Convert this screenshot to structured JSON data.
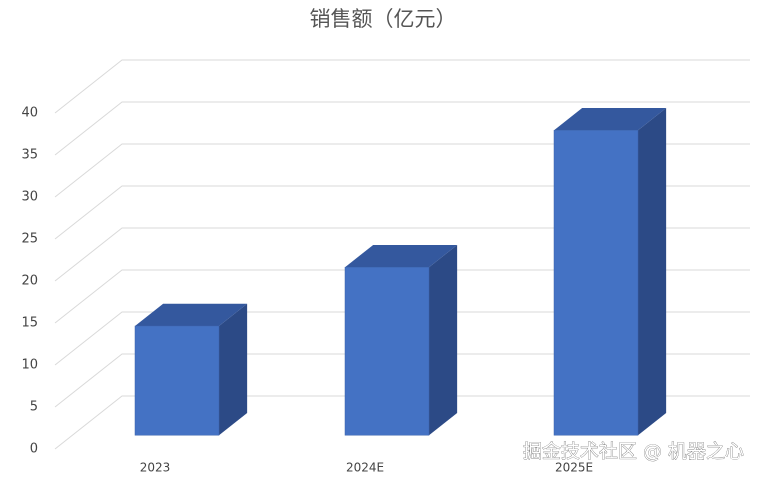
{
  "chart_data": {
    "type": "bar3d",
    "title": "销售额（亿元）",
    "categories": [
      "2023",
      "2024E",
      "2025E"
    ],
    "values": [
      13,
      20,
      36.3
    ],
    "color": "#4472c4",
    "ylim": [
      0,
      40
    ],
    "yticks": [
      0,
      5,
      10,
      15,
      20,
      25,
      30,
      35,
      40
    ],
    "grid": true
  },
  "watermark": "掘金技术社区 @ 机器之心"
}
